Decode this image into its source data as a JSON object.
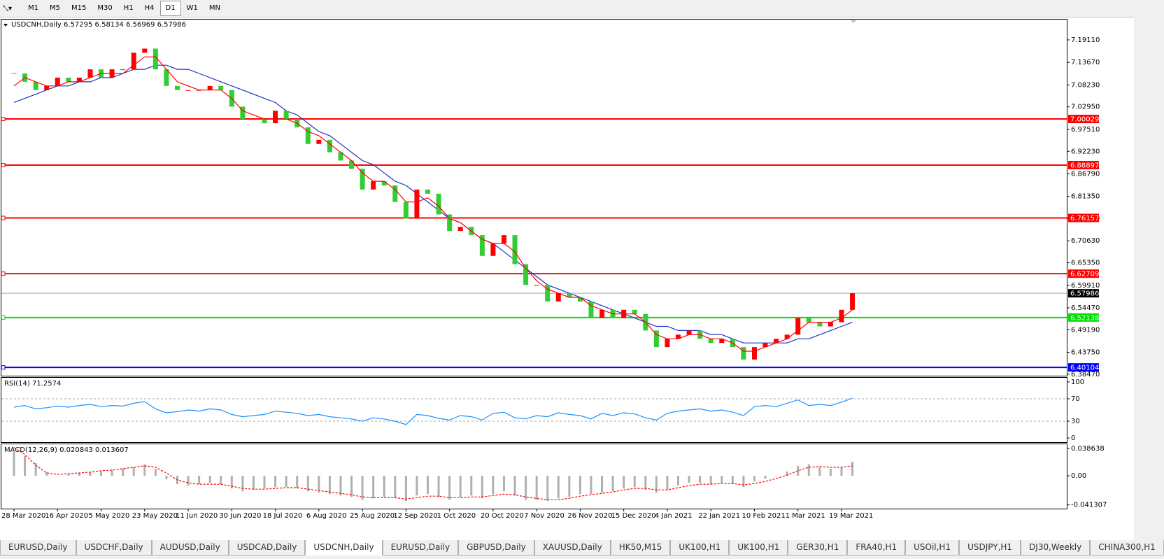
{
  "toolbar": {
    "timeframes": [
      "M1",
      "M5",
      "M15",
      "M30",
      "H1",
      "H4",
      "D1",
      "W1",
      "MN"
    ],
    "active_index": 6
  },
  "tabs": {
    "items": [
      "EURUSD,Daily",
      "USDCHF,Daily",
      "AUDUSD,Daily",
      "USDCAD,Daily",
      "USDCNH,Daily",
      "EURUSD,Daily",
      "GBPUSD,Daily",
      "XAUUSD,Daily",
      "HK50,M15",
      "UK100,H1",
      "UK100,H1",
      "GER30,H1",
      "FRA40,H1",
      "USOil,H1",
      "USDJPY,H1",
      "DJ30,Weekly",
      "CHINA300,H1"
    ],
    "active_index": 4
  },
  "chart_data": [
    {
      "type": "candlestick",
      "title": "USDCNH,Daily  6.57295 6.58134 6.56969 6.57986",
      "categories": [
        "28 Mar 2020",
        null,
        null,
        null,
        "16 Apr 2020",
        null,
        null,
        null,
        "5 May 2020",
        null,
        null,
        null,
        "23 May 2020",
        null,
        null,
        null,
        "11 Jun 2020",
        null,
        null,
        null,
        "30 Jun 2020",
        null,
        null,
        null,
        "18 Jul 2020",
        null,
        null,
        null,
        "6 Aug 2020",
        null,
        null,
        null,
        "25 Aug 2020",
        null,
        null,
        null,
        "12 Sep 2020",
        null,
        null,
        null,
        "1 Oct 2020",
        null,
        null,
        null,
        "20 Oct 2020",
        null,
        null,
        null,
        "7 Nov 2020",
        null,
        null,
        null,
        "26 Nov 2020",
        null,
        null,
        null,
        "15 Dec 2020",
        null,
        null,
        null,
        "4 Jan 2021",
        null,
        null,
        null,
        "22 Jan 2021",
        null,
        null,
        null,
        "10 Feb 2021",
        null,
        null,
        null,
        "1 Mar 2021",
        null,
        null,
        null,
        "19 Mar 2021",
        null
      ],
      "values": [
        7.11,
        7.09,
        7.07,
        7.08,
        7.1,
        7.09,
        7.1,
        7.12,
        7.1,
        7.12,
        7.12,
        7.16,
        7.17,
        7.12,
        7.08,
        7.07,
        7.07,
        7.07,
        7.08,
        7.07,
        7.03,
        7.0,
        7.0,
        6.99,
        7.02,
        7.0,
        6.98,
        6.94,
        6.95,
        6.92,
        6.9,
        6.88,
        6.83,
        6.85,
        6.84,
        6.8,
        6.76,
        6.83,
        6.82,
        6.77,
        6.73,
        6.74,
        6.72,
        6.67,
        6.7,
        6.72,
        6.65,
        6.6,
        6.6,
        6.56,
        6.58,
        6.57,
        6.56,
        6.52,
        6.54,
        6.52,
        6.54,
        6.53,
        6.49,
        6.45,
        6.47,
        6.48,
        6.49,
        6.47,
        6.46,
        6.47,
        6.45,
        6.42,
        6.45,
        6.46,
        6.47,
        6.48,
        6.52,
        6.51,
        6.5,
        6.51,
        6.54,
        6.58
      ],
      "up_color": "#ff0000",
      "down_color": "#32cd32",
      "ma_fast": {
        "color": "#ff0000",
        "values": [
          7.08,
          7.1,
          7.09,
          7.08,
          7.08,
          7.09,
          7.09,
          7.1,
          7.11,
          7.11,
          7.11,
          7.13,
          7.15,
          7.15,
          7.12,
          7.09,
          7.08,
          7.07,
          7.07,
          7.07,
          7.05,
          7.02,
          7.01,
          7.0,
          7.0,
          7.0,
          6.99,
          6.97,
          6.96,
          6.94,
          6.92,
          6.9,
          6.87,
          6.85,
          6.85,
          6.83,
          6.8,
          6.8,
          6.81,
          6.79,
          6.76,
          6.75,
          6.73,
          6.71,
          6.7,
          6.7,
          6.68,
          6.64,
          6.61,
          6.59,
          6.58,
          6.57,
          6.57,
          6.55,
          6.54,
          6.53,
          6.53,
          6.53,
          6.51,
          6.48,
          6.47,
          6.47,
          6.48,
          6.48,
          6.47,
          6.47,
          6.46,
          6.44,
          6.44,
          6.45,
          6.46,
          6.47,
          6.49,
          6.51,
          6.51,
          6.51,
          6.52,
          6.54
        ]
      },
      "ma_slow": {
        "color": "#2030c8",
        "values": [
          7.04,
          7.05,
          7.06,
          7.07,
          7.08,
          7.08,
          7.09,
          7.09,
          7.1,
          7.1,
          7.11,
          7.12,
          7.12,
          7.13,
          7.13,
          7.12,
          7.12,
          7.11,
          7.1,
          7.09,
          7.08,
          7.07,
          7.06,
          7.05,
          7.04,
          7.02,
          7.01,
          6.99,
          6.97,
          6.96,
          6.94,
          6.92,
          6.9,
          6.89,
          6.87,
          6.85,
          6.84,
          6.82,
          6.8,
          6.78,
          6.76,
          6.75,
          6.73,
          6.71,
          6.7,
          6.68,
          6.66,
          6.64,
          6.62,
          6.6,
          6.59,
          6.58,
          6.57,
          6.56,
          6.55,
          6.54,
          6.53,
          6.52,
          6.51,
          6.5,
          6.5,
          6.49,
          6.49,
          6.49,
          6.48,
          6.48,
          6.47,
          6.46,
          6.46,
          6.46,
          6.46,
          6.46,
          6.47,
          6.47,
          6.48,
          6.49,
          6.5,
          6.51
        ]
      },
      "levels": [
        {
          "value": 7.00029,
          "color": "#ff0000"
        },
        {
          "value": 6.88897,
          "color": "#ff0000"
        },
        {
          "value": 6.76157,
          "color": "#ff0000"
        },
        {
          "value": 6.62709,
          "color": "#ff0000"
        },
        {
          "value": 6.52138,
          "color": "#00dd00"
        },
        {
          "value": 6.40104,
          "color": "#0000ff"
        }
      ],
      "current_price": 6.57986,
      "ylim": [
        6.381,
        7.24
      ],
      "yticks": [
        {
          "value": 7.1911,
          "label": "7.19110"
        },
        {
          "value": 7.1367,
          "label": "7.13670"
        },
        {
          "value": 7.0823,
          "label": "7.08230"
        },
        {
          "value": 7.0295,
          "label": "7.02950"
        },
        {
          "value": 6.9751,
          "label": "6.97510"
        },
        {
          "value": 6.9223,
          "label": "6.92230"
        },
        {
          "value": 6.8679,
          "label": "6.86790"
        },
        {
          "value": 6.8135,
          "label": "6.81350"
        },
        {
          "value": 6.7607,
          "label": "6.76070"
        },
        {
          "value": 6.7063,
          "label": "6.70630"
        },
        {
          "value": 6.6535,
          "label": "6.65350"
        },
        {
          "value": 6.5991,
          "label": "6.59910"
        },
        {
          "value": 6.5447,
          "label": "6.54470"
        },
        {
          "value": 6.4919,
          "label": "6.49190"
        },
        {
          "value": 6.4375,
          "label": "6.43750"
        },
        {
          "value": 6.3847,
          "label": "6.38470"
        }
      ]
    },
    {
      "type": "line",
      "title": "RSI(14) 71.2574",
      "color": "#1e90ff",
      "values": [
        55,
        58,
        52,
        54,
        57,
        55,
        58,
        60,
        56,
        58,
        57,
        62,
        65,
        52,
        45,
        47,
        50,
        48,
        52,
        50,
        42,
        38,
        40,
        42,
        48,
        46,
        44,
        40,
        42,
        38,
        36,
        34,
        30,
        36,
        34,
        30,
        24,
        42,
        40,
        35,
        32,
        40,
        38,
        32,
        44,
        46,
        36,
        34,
        40,
        38,
        45,
        42,
        40,
        34,
        44,
        40,
        45,
        43,
        36,
        32,
        44,
        48,
        50,
        52,
        48,
        50,
        46,
        40,
        56,
        58,
        56,
        62,
        68,
        58,
        60,
        58,
        64,
        71
      ],
      "levels": [
        70,
        30
      ],
      "ylim": [
        -7.5,
        107.5
      ],
      "yticks": [
        100,
        70,
        30,
        0
      ]
    },
    {
      "type": "histogram-line",
      "title": "MACD(12,26,9) 0.020843 0.013607",
      "color": "#b0b0b0",
      "values": [
        0.035,
        0.028,
        0.018,
        0.005,
        0,
        0.002,
        0.004,
        0.005,
        0.006,
        0.008,
        0.01,
        0.012,
        0.016,
        0.01,
        -0.005,
        -0.012,
        -0.014,
        -0.012,
        -0.01,
        -0.012,
        -0.018,
        -0.022,
        -0.02,
        -0.018,
        -0.016,
        -0.016,
        -0.018,
        -0.022,
        -0.024,
        -0.026,
        -0.028,
        -0.03,
        -0.034,
        -0.032,
        -0.03,
        -0.032,
        -0.036,
        -0.028,
        -0.026,
        -0.03,
        -0.034,
        -0.03,
        -0.028,
        -0.032,
        -0.026,
        -0.022,
        -0.028,
        -0.034,
        -0.034,
        -0.036,
        -0.032,
        -0.03,
        -0.026,
        -0.026,
        -0.024,
        -0.022,
        -0.018,
        -0.016,
        -0.02,
        -0.024,
        -0.02,
        -0.014,
        -0.01,
        -0.01,
        -0.012,
        -0.01,
        -0.012,
        -0.016,
        -0.008,
        -0.004,
        0,
        0.006,
        0.014,
        0.016,
        0.012,
        0.01,
        0.012,
        0.02
      ],
      "signal": {
        "color": "#ff0000",
        "values": [
          0.04,
          0.03,
          0.015,
          0.004,
          0.002,
          0.003,
          0.004,
          0.005,
          0.007,
          0.008,
          0.01,
          0.012,
          0.014,
          0.012,
          0.004,
          -0.006,
          -0.01,
          -0.012,
          -0.012,
          -0.012,
          -0.015,
          -0.018,
          -0.019,
          -0.019,
          -0.018,
          -0.017,
          -0.017,
          -0.019,
          -0.021,
          -0.023,
          -0.025,
          -0.027,
          -0.03,
          -0.031,
          -0.031,
          -0.031,
          -0.033,
          -0.031,
          -0.029,
          -0.029,
          -0.031,
          -0.031,
          -0.03,
          -0.03,
          -0.028,
          -0.026,
          -0.027,
          -0.03,
          -0.032,
          -0.034,
          -0.034,
          -0.032,
          -0.029,
          -0.027,
          -0.025,
          -0.023,
          -0.02,
          -0.018,
          -0.018,
          -0.02,
          -0.02,
          -0.017,
          -0.014,
          -0.012,
          -0.012,
          -0.011,
          -0.011,
          -0.013,
          -0.011,
          -0.008,
          -0.004,
          0.001,
          0.007,
          0.012,
          0.013,
          0.012,
          0.012,
          0.014
        ]
      },
      "ylim": [
        -0.0466,
        0.0446
      ],
      "yticks": [
        0.038638,
        {
          "value": 0,
          "label": "0.00"
        },
        -0.041307
      ]
    }
  ]
}
